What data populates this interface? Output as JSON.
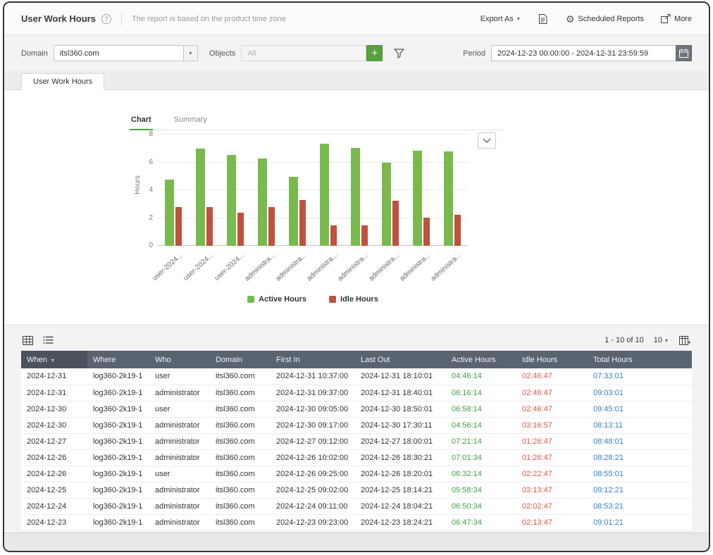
{
  "header": {
    "title": "User Work Hours",
    "help_glyph": "?",
    "subtitle": "The report is based on the product time zone",
    "export_as": "Export As",
    "scheduled_reports": "Scheduled Reports",
    "more": "More"
  },
  "filters": {
    "domain_label": "Domain",
    "domain_value": "itsl360.com",
    "objects_label": "Objects",
    "objects_placeholder": "All",
    "add_button_glyph": "+",
    "period_label": "Period",
    "period_value": "2024-12-23 00:00:00 - 2024-12-31 23:59:59"
  },
  "tabs": {
    "report_tab": "User Work Hours"
  },
  "chart": {
    "tab_chart": "Chart",
    "tab_summary": "Summary"
  },
  "chart_data": {
    "type": "bar",
    "title": "",
    "xlabel": "",
    "ylabel": "Hours",
    "ylim": [
      0,
      8
    ],
    "yticks": [
      0,
      2,
      4,
      6,
      8
    ],
    "grid": true,
    "legend_position": "bottom",
    "categories": [
      "user-2024...",
      "user-2024...",
      "user-2024...",
      "administra...",
      "administra...",
      "administra...",
      "administra...",
      "administra...",
      "administra...",
      "administra..."
    ],
    "series": [
      {
        "name": "Active Hours",
        "color": "#79b94e",
        "values": [
          4.77,
          6.97,
          6.54,
          6.27,
          4.94,
          7.35,
          7.03,
          5.98,
          6.84,
          6.79
        ]
      },
      {
        "name": "Idle Hours",
        "color": "#c0513e",
        "values": [
          2.78,
          2.78,
          2.38,
          2.78,
          3.28,
          1.45,
          1.45,
          3.23,
          2.05,
          2.23
        ]
      }
    ]
  },
  "toolbar": {
    "range_text": "1 - 10 of 10",
    "page_size": "10"
  },
  "table": {
    "columns": [
      "When",
      "Where",
      "Who",
      "Domain",
      "First In",
      "Last Out",
      "Active Hours",
      "Idle Hours",
      "Total Hours"
    ],
    "sorted_column": "When",
    "rows": [
      [
        "2024-12-31",
        "log360-2k19-1",
        "user",
        "itsl360.com",
        "2024-12-31 10:37:00",
        "2024-12-31 18:10:01",
        "04:46:14",
        "02:46:47",
        "07:33:01"
      ],
      [
        "2024-12-31",
        "log360-2k19-1",
        "administrator",
        "itsl360.com",
        "2024-12-31 09:37:00",
        "2024-12-31 18:40:01",
        "06:16:14",
        "02:46:47",
        "09:03:01"
      ],
      [
        "2024-12-30",
        "log360-2k19-1",
        "user",
        "itsl360.com",
        "2024-12-30 09:05:00",
        "2024-12-30 18:50:01",
        "06:58:14",
        "02:46:47",
        "09:45:01"
      ],
      [
        "2024-12-30",
        "log360-2k19-1",
        "administrator",
        "itsl360.com",
        "2024-12-30 09:17:00",
        "2024-12-30 17:30:11",
        "04:56:14",
        "03:16:57",
        "08:13:11"
      ],
      [
        "2024-12-27",
        "log360-2k19-1",
        "administrator",
        "itsl360.com",
        "2024-12-27 09:12:00",
        "2024-12-27 18:00:01",
        "07:21:14",
        "01:26:47",
        "08:48:01"
      ],
      [
        "2024-12-26",
        "log360-2k19-1",
        "administrator",
        "itsl360.com",
        "2024-12-26 10:02:00",
        "2024-12-26 18:30:21",
        "07:01:34",
        "01:26:47",
        "08:28:21"
      ],
      [
        "2024-12-26",
        "log360-2k19-1",
        "user",
        "itsl360.com",
        "2024-12-26 09:25:00",
        "2024-12-26 18:20:01",
        "06:32:14",
        "02:22:47",
        "08:55:01"
      ],
      [
        "2024-12-25",
        "log360-2k19-1",
        "administrator",
        "itsl360.com",
        "2024-12-25 09:02:00",
        "2024-12-25 18:14:21",
        "05:58:34",
        "03:13:47",
        "09:12:21"
      ],
      [
        "2024-12-24",
        "log360-2k19-1",
        "administrator",
        "itsl360.com",
        "2024-12-24 09:11:00",
        "2024-12-24 18:04:21",
        "06:50:34",
        "02:02:47",
        "08:53:21"
      ],
      [
        "2024-12-23",
        "log360-2k19-1",
        "administrator",
        "itsl360.com",
        "2024-12-23 09:23:00",
        "2024-12-23 18:24:21",
        "06:47:34",
        "02:13:47",
        "09:01:21"
      ]
    ]
  },
  "colors": {
    "accent_green": "#4aa341",
    "active_text": "#3fa044",
    "idle_text": "#e25749",
    "total_text": "#367fc0",
    "header_bg": "#5a6370",
    "header_sorted_bg": "#49525d"
  }
}
